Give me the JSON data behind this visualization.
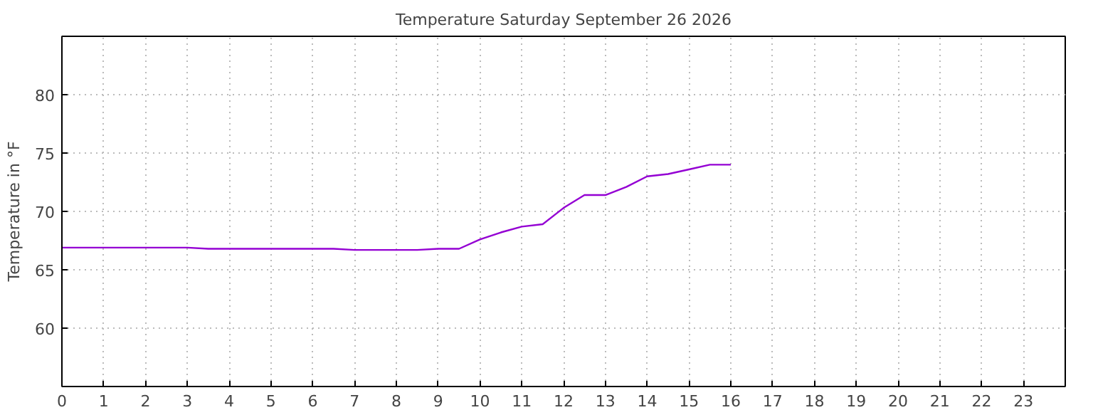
{
  "chart_data": {
    "type": "line",
    "title": "Temperature Saturday September 26 2026",
    "ylabel": "Temperature in °F",
    "x": [
      0,
      3,
      3.5,
      6.5,
      7,
      8.5,
      9,
      9.5,
      10,
      10.5,
      11,
      11.5,
      12,
      12.5,
      13,
      13.5,
      14,
      14.5,
      15,
      15.5,
      16
    ],
    "series": [
      {
        "color": "#9400d3",
        "values": [
          66.9,
          66.9,
          66.8,
          66.8,
          66.7,
          66.7,
          66.8,
          66.8,
          67.6,
          68.2,
          68.7,
          68.9,
          70.3,
          71.4,
          71.4,
          72.1,
          73.0,
          73.2,
          73.6,
          74.0,
          74.0
        ]
      }
    ],
    "xlim": [
      0,
      24
    ],
    "xticks": [
      0,
      1,
      2,
      3,
      4,
      5,
      6,
      7,
      8,
      9,
      10,
      11,
      12,
      13,
      14,
      15,
      16,
      17,
      18,
      19,
      20,
      21,
      22,
      23
    ],
    "ylim": [
      55,
      85
    ],
    "yticks": [
      60,
      65,
      70,
      75,
      80
    ],
    "grid": true,
    "marker": "none",
    "line_style": "solid"
  }
}
